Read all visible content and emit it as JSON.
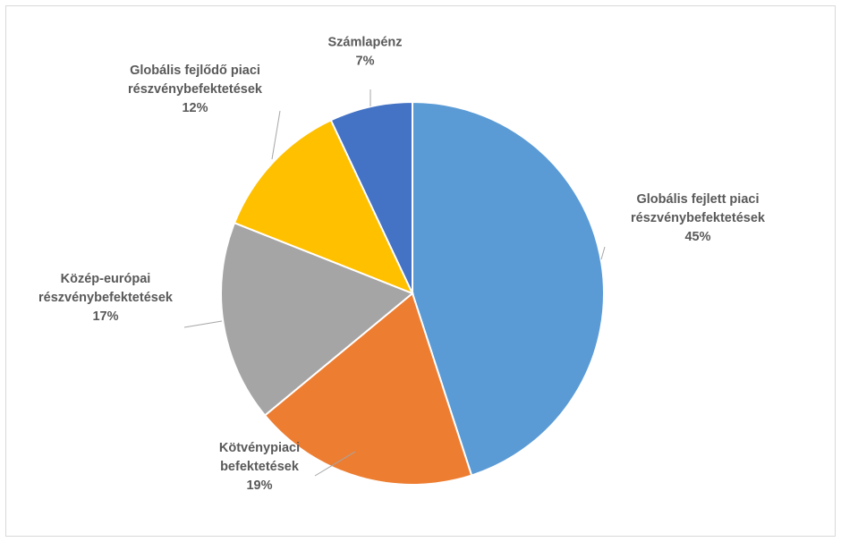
{
  "chart_data": {
    "type": "pie",
    "title": "",
    "slices": [
      {
        "name": "Globális fejlett piaci részvénybefektetések",
        "lines": [
          "Globális fejlett piaci",
          "részvénybefektetések"
        ],
        "value": 45,
        "pct_label": "45%",
        "color": "#5B9BD5"
      },
      {
        "name": "Kötvénypiaci befektetések",
        "lines": [
          "Kötvénypiaci",
          "befektetések"
        ],
        "value": 19,
        "pct_label": "19%",
        "color": "#ED7D31"
      },
      {
        "name": "Közép-európai részvénybefektetések",
        "lines": [
          "Közép-európai",
          "részvénybefektetések"
        ],
        "value": 17,
        "pct_label": "17%",
        "color": "#A5A5A5"
      },
      {
        "name": "Globális fejlődő piaci részvénybefektetések",
        "lines": [
          "Globális fejlődő piaci",
          "részvénybefektetések"
        ],
        "value": 12,
        "pct_label": "12%",
        "color": "#FFC000"
      },
      {
        "name": "Számlapénz",
        "lines": [
          "Számlapénz"
        ],
        "value": 7,
        "pct_label": "7%",
        "color": "#4472C4"
      }
    ],
    "start": "12 o'clock",
    "direction": "clockwise",
    "legend": "none",
    "data_labels": "outside with leader lines"
  }
}
